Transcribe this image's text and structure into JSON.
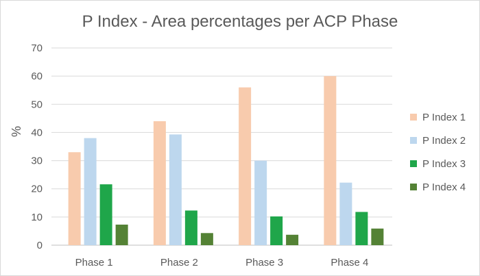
{
  "chart_data": {
    "type": "bar",
    "title": "P Index - Area percentages per ACP Phase",
    "xlabel": "",
    "ylabel": "%",
    "ylim": [
      0,
      70
    ],
    "yticks": [
      0,
      10,
      20,
      30,
      40,
      50,
      60,
      70
    ],
    "grid": true,
    "legend": "right",
    "categories": [
      "Phase 1",
      "Phase 2",
      "Phase 3",
      "Phase 4"
    ],
    "series": [
      {
        "name": "P Index 1",
        "color": "#f8cbad",
        "values": [
          33,
          44,
          56,
          60
        ]
      },
      {
        "name": "P Index 2",
        "color": "#bdd7ee",
        "values": [
          38,
          39.3,
          30,
          22.2
        ]
      },
      {
        "name": "P Index 3",
        "color": "#1fa64a",
        "values": [
          21.6,
          12.3,
          10.2,
          11.8
        ]
      },
      {
        "name": "P Index 4",
        "color": "#548235",
        "values": [
          7.3,
          4.3,
          3.7,
          5.9
        ]
      }
    ]
  }
}
